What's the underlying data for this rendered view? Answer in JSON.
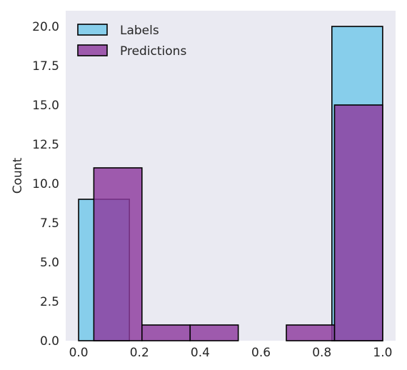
{
  "chart_data": {
    "type": "histogram",
    "title": "",
    "xlabel": "",
    "ylabel": "Count",
    "xlim": [
      -0.0425,
      1.0425
    ],
    "ylim": [
      0,
      21
    ],
    "xticks": [
      "0.0",
      "0.2",
      "0.4",
      "0.6",
      "0.8",
      "1.0"
    ],
    "yticks": [
      "0.0",
      "2.5",
      "5.0",
      "7.5",
      "10.0",
      "12.5",
      "15.0",
      "17.5",
      "20.0"
    ],
    "grid": false,
    "legend": {
      "placement": "top-left"
    },
    "series": [
      {
        "name": "Labels",
        "color": "#87CEEB",
        "bins": [
          {
            "x0": 0.0,
            "x1": 0.167,
            "count": 9
          },
          {
            "x0": 0.833,
            "x1": 1.0,
            "count": 20
          }
        ]
      },
      {
        "name": "Predictions",
        "color": "#8E3A9D",
        "bins": [
          {
            "x0": 0.05,
            "x1": 0.2083,
            "count": 11
          },
          {
            "x0": 0.2083,
            "x1": 0.3667,
            "count": 1
          },
          {
            "x0": 0.3667,
            "x1": 0.525,
            "count": 1
          },
          {
            "x0": 0.525,
            "x1": 0.6833,
            "count": 0
          },
          {
            "x0": 0.6833,
            "x1": 0.8417,
            "count": 1
          },
          {
            "x0": 0.8417,
            "x1": 1.0,
            "count": 15
          }
        ]
      }
    ]
  }
}
